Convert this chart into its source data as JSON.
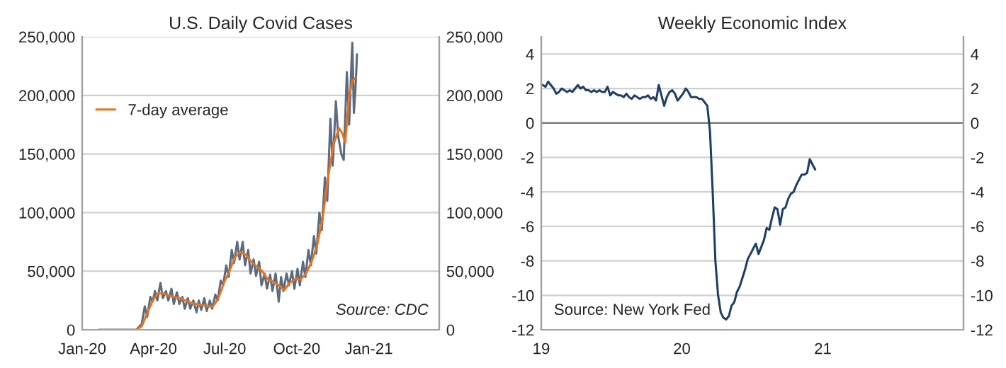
{
  "chart_data": [
    {
      "type": "line",
      "title": "U.S. Daily Covid Cases",
      "annotations": [
        "Source: CDC"
      ],
      "legend": "top left",
      "grid": "y",
      "xlim": [
        "2020-01-01",
        "2021-04-01"
      ],
      "xticks": [
        {
          "value": "2020-01-01",
          "label": "Jan-20"
        },
        {
          "value": "2020-04-01",
          "label": "Apr-20"
        },
        {
          "value": "2020-07-01",
          "label": "Jul-20"
        },
        {
          "value": "2020-10-01",
          "label": "Oct-20"
        },
        {
          "value": "2021-01-01",
          "label": "Jan-21"
        }
      ],
      "ylim": [
        0,
        250000
      ],
      "yticks": [
        0,
        {
          "value": 50000,
          "label": "50,000"
        },
        {
          "value": 100000,
          "label": "100,000"
        },
        {
          "value": 150000,
          "label": "150,000"
        },
        {
          "value": 200000,
          "label": "200,000"
        },
        {
          "value": 250000,
          "label": "250,000"
        }
      ],
      "y2lim": [
        0,
        250000
      ],
      "y2ticks": [
        0,
        {
          "value": 50000,
          "label": "50,000"
        },
        {
          "value": 100000,
          "label": "100,000"
        },
        {
          "value": 150000,
          "label": "150,000"
        },
        {
          "value": 200000,
          "label": "200,000"
        },
        {
          "value": 250000,
          "label": "250,000"
        }
      ],
      "series": [
        {
          "color": "#5b6b80",
          "x": [
            "2020-01-22",
            "2020-03-01",
            "2020-03-10",
            "2020-03-17",
            "2020-03-21",
            "2020-03-24",
            "2020-03-28",
            "2020-03-31",
            "2020-04-03",
            "2020-04-06",
            "2020-04-10",
            "2020-04-13",
            "2020-04-17",
            "2020-04-20",
            "2020-04-24",
            "2020-04-27",
            "2020-05-01",
            "2020-05-04",
            "2020-05-08",
            "2020-05-11",
            "2020-05-15",
            "2020-05-18",
            "2020-05-22",
            "2020-05-26",
            "2020-05-29",
            "2020-06-01",
            "2020-06-05",
            "2020-06-08",
            "2020-06-12",
            "2020-06-15",
            "2020-06-19",
            "2020-06-22",
            "2020-06-26",
            "2020-06-29",
            "2020-07-03",
            "2020-07-06",
            "2020-07-10",
            "2020-07-13",
            "2020-07-17",
            "2020-07-20",
            "2020-07-24",
            "2020-07-27",
            "2020-07-31",
            "2020-08-03",
            "2020-08-07",
            "2020-08-10",
            "2020-08-14",
            "2020-08-17",
            "2020-08-21",
            "2020-08-24",
            "2020-08-28",
            "2020-08-31",
            "2020-09-04",
            "2020-09-08",
            "2020-09-11",
            "2020-09-14",
            "2020-09-18",
            "2020-09-21",
            "2020-09-25",
            "2020-09-28",
            "2020-10-02",
            "2020-10-05",
            "2020-10-09",
            "2020-10-12",
            "2020-10-16",
            "2020-10-19",
            "2020-10-23",
            "2020-10-26",
            "2020-10-30",
            "2020-11-02",
            "2020-11-06",
            "2020-11-09",
            "2020-11-13",
            "2020-11-16",
            "2020-11-20",
            "2020-11-23",
            "2020-11-27",
            "2020-11-30",
            "2020-12-04",
            "2020-12-07",
            "2020-12-10",
            "2020-12-11",
            "2020-12-13",
            "2020-12-15",
            "2020-12-17"
          ],
          "values": [
            0,
            0,
            0,
            5000,
            20000,
            11000,
            28000,
            24000,
            33000,
            25000,
            40000,
            27000,
            33000,
            25000,
            35000,
            22000,
            32000,
            22000,
            28000,
            18000,
            27000,
            18000,
            25000,
            15000,
            25000,
            17000,
            27000,
            16000,
            25000,
            18000,
            30000,
            25000,
            42000,
            38000,
            55000,
            45000,
            68000,
            57000,
            75000,
            60000,
            75000,
            55000,
            68000,
            48000,
            60000,
            46000,
            58000,
            38000,
            48000,
            35000,
            47000,
            33000,
            48000,
            24000,
            45000,
            33000,
            48000,
            38000,
            50000,
            35000,
            52000,
            38000,
            58000,
            45000,
            68000,
            55000,
            80000,
            65000,
            100000,
            85000,
            130000,
            110000,
            180000,
            140000,
            195000,
            165000,
            150000,
            145000,
            220000,
            175000,
            230000,
            245000,
            185000,
            205000,
            235000
          ]
        },
        {
          "name": "7-day average",
          "color": "#e8731e",
          "x": [
            "2020-03-10",
            "2020-03-17",
            "2020-03-24",
            "2020-03-31",
            "2020-04-07",
            "2020-04-14",
            "2020-04-21",
            "2020-04-28",
            "2020-05-05",
            "2020-05-12",
            "2020-05-19",
            "2020-05-26",
            "2020-06-02",
            "2020-06-09",
            "2020-06-16",
            "2020-06-23",
            "2020-06-30",
            "2020-07-07",
            "2020-07-14",
            "2020-07-21",
            "2020-07-28",
            "2020-08-04",
            "2020-08-11",
            "2020-08-18",
            "2020-08-25",
            "2020-09-01",
            "2020-09-08",
            "2020-09-15",
            "2020-09-22",
            "2020-09-29",
            "2020-10-06",
            "2020-10-13",
            "2020-10-20",
            "2020-10-27",
            "2020-11-03",
            "2020-11-10",
            "2020-11-17",
            "2020-11-24",
            "2020-11-28",
            "2020-12-02",
            "2020-12-07",
            "2020-12-11",
            "2020-12-15"
          ],
          "values": [
            0,
            3000,
            14000,
            25000,
            31000,
            31000,
            29000,
            28000,
            27000,
            25000,
            23000,
            22000,
            21000,
            20000,
            20000,
            27000,
            40000,
            50000,
            62000,
            66000,
            64000,
            58000,
            54000,
            50000,
            43000,
            41000,
            38000,
            34000,
            40000,
            43000,
            43000,
            48000,
            58000,
            72000,
            95000,
            130000,
            158000,
            172000,
            168000,
            160000,
            200000,
            212000,
            215000
          ]
        }
      ]
    },
    {
      "type": "line",
      "title": "Weekly Economic Index",
      "annotations": [
        "Source: New York Fed"
      ],
      "grid": "y",
      "xlim": [
        "2019-01-01",
        "2022-01-01"
      ],
      "xticks": [
        {
          "value": "2019-01-01",
          "label": "19"
        },
        {
          "value": "2020-01-01",
          "label": "20"
        },
        {
          "value": "2021-01-01",
          "label": "21"
        }
      ],
      "ylim": [
        -12,
        5
      ],
      "yticks": [
        -12,
        -10,
        -8,
        -6,
        -4,
        -2,
        0,
        2,
        4
      ],
      "y2lim": [
        -12,
        5
      ],
      "y2ticks": [
        -12,
        -10,
        -8,
        -6,
        -4,
        -2,
        0,
        2,
        4
      ],
      "ref_lines": [
        {
          "axis": "y",
          "value": 0,
          "color": "#808080"
        }
      ],
      "series": [
        {
          "color": "#1f3f66",
          "x": [
            "2019-01-05",
            "2019-01-12",
            "2019-01-19",
            "2019-01-26",
            "2019-02-02",
            "2019-02-09",
            "2019-02-16",
            "2019-02-23",
            "2019-03-02",
            "2019-03-09",
            "2019-03-16",
            "2019-03-23",
            "2019-03-30",
            "2019-04-06",
            "2019-04-13",
            "2019-04-20",
            "2019-04-27",
            "2019-05-04",
            "2019-05-11",
            "2019-05-18",
            "2019-05-25",
            "2019-06-01",
            "2019-06-08",
            "2019-06-15",
            "2019-06-22",
            "2019-06-29",
            "2019-07-06",
            "2019-07-13",
            "2019-07-20",
            "2019-07-27",
            "2019-08-03",
            "2019-08-10",
            "2019-08-17",
            "2019-08-24",
            "2019-08-31",
            "2019-09-07",
            "2019-09-14",
            "2019-09-21",
            "2019-09-28",
            "2019-10-05",
            "2019-10-12",
            "2019-10-19",
            "2019-10-26",
            "2019-11-02",
            "2019-11-09",
            "2019-11-16",
            "2019-11-23",
            "2019-11-30",
            "2019-12-07",
            "2019-12-14",
            "2019-12-21",
            "2019-12-28",
            "2020-01-04",
            "2020-01-11",
            "2020-01-18",
            "2020-01-25",
            "2020-02-01",
            "2020-02-08",
            "2020-02-15",
            "2020-02-22",
            "2020-02-29",
            "2020-03-07",
            "2020-03-14",
            "2020-03-21",
            "2020-03-28",
            "2020-04-04",
            "2020-04-11",
            "2020-04-18",
            "2020-04-25",
            "2020-05-02",
            "2020-05-09",
            "2020-05-16",
            "2020-05-23",
            "2020-05-30",
            "2020-06-06",
            "2020-06-13",
            "2020-06-20",
            "2020-06-27",
            "2020-07-04",
            "2020-07-11",
            "2020-07-18",
            "2020-07-25",
            "2020-08-01",
            "2020-08-08",
            "2020-08-15",
            "2020-08-22",
            "2020-08-29",
            "2020-09-05",
            "2020-09-12",
            "2020-09-19",
            "2020-09-26",
            "2020-10-03",
            "2020-10-10",
            "2020-10-17",
            "2020-10-24",
            "2020-10-31",
            "2020-11-07",
            "2020-11-14",
            "2020-11-21",
            "2020-11-28",
            "2020-12-05",
            "2020-12-12"
          ],
          "values": [
            2.2,
            2.1,
            2.4,
            2.2,
            2.0,
            1.7,
            1.8,
            2.0,
            1.9,
            1.8,
            1.9,
            1.8,
            2.0,
            2.2,
            2.0,
            2.1,
            1.9,
            1.9,
            1.8,
            1.9,
            1.8,
            1.9,
            1.8,
            1.8,
            2.1,
            1.6,
            1.8,
            1.7,
            1.6,
            1.6,
            1.5,
            1.7,
            1.5,
            1.4,
            1.6,
            1.5,
            1.4,
            1.5,
            1.5,
            1.6,
            1.4,
            1.5,
            1.3,
            2.2,
            1.6,
            1.0,
            1.5,
            1.8,
            1.9,
            1.7,
            1.3,
            1.5,
            1.7,
            2.0,
            1.8,
            1.5,
            1.5,
            1.5,
            1.4,
            1.4,
            1.2,
            1.0,
            -0.5,
            -4.0,
            -8.0,
            -10.0,
            -11.0,
            -11.3,
            -11.4,
            -11.2,
            -10.6,
            -10.4,
            -9.8,
            -9.5,
            -9.0,
            -8.5,
            -7.9,
            -7.6,
            -7.3,
            -7.0,
            -7.6,
            -7.2,
            -6.8,
            -6.1,
            -6.2,
            -5.5,
            -4.9,
            -5.0,
            -5.9,
            -5.0,
            -4.9,
            -4.4,
            -4.1,
            -4.0,
            -3.6,
            -3.3,
            -3.0,
            -3.0,
            -2.9,
            -2.1,
            -2.4,
            -2.7
          ]
        }
      ]
    }
  ]
}
